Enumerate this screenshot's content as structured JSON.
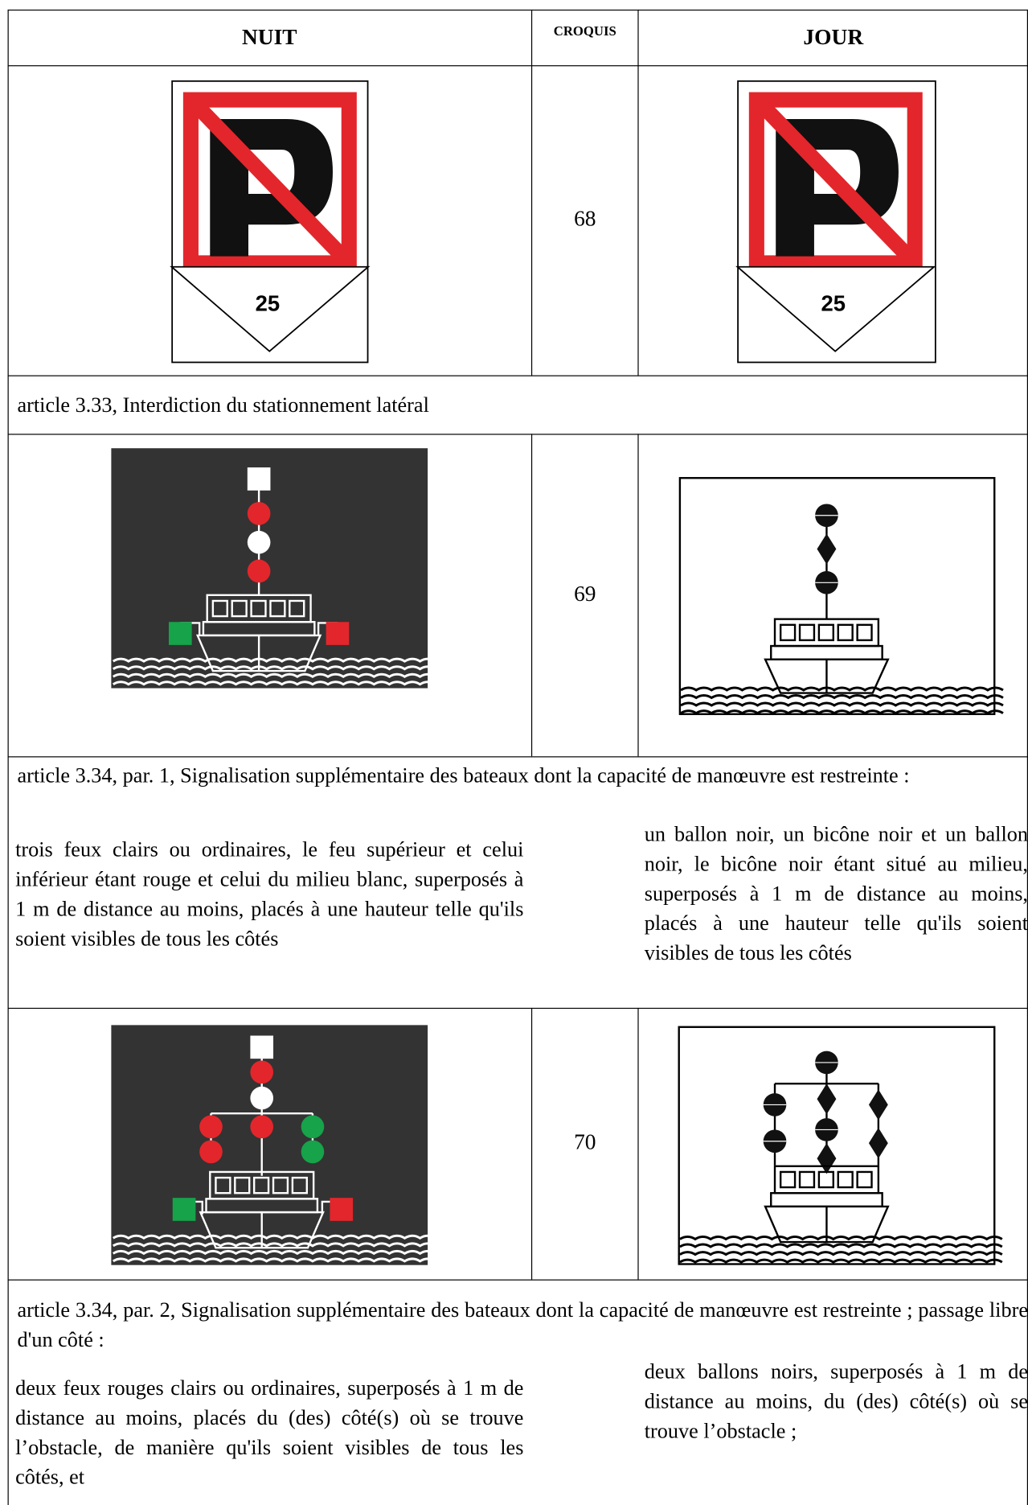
{
  "header": {
    "night": "NUIT",
    "sketch": "CROQUIS",
    "day": "JOUR"
  },
  "sections": [
    {
      "sketch_number": 68,
      "night_sign_label": "25",
      "day_sign_label": "25",
      "article": "article 3.33, Interdiction du stationnement latéral"
    },
    {
      "sketch_number": 69,
      "article": "article 3.34, par. 1, Signalisation supplémentaire des bateaux dont la capacité de manœuvre est restreinte :",
      "night_description": "trois feux clairs ou ordinaires, le feu supérieur et celui inférieur étant rouge et celui du milieu blanc, superposés à 1 m de distance au moins, placés à une hauteur telle qu'ils soient visibles de tous les côtés",
      "day_description": "un ballon noir, un bicône noir et un ballon noir, le bicône noir étant situé au milieu, superposés à 1 m de distance au moins, placés à une hauteur telle qu'ils soient visibles de tous les côtés"
    },
    {
      "sketch_number": 70,
      "article": "article 3.34, par. 2, Signalisation supplémentaire des bateaux dont la capacité de manœuvre est restreinte ; passage libre d'un côté :",
      "night_description": "deux feux rouges clairs ou ordinaires, superposés à 1 m de distance au moins, placés du (des) côté(s) où se trouve l’obstacle, de manière qu'ils soient visibles de tous les côtés, et",
      "day_description": "deux ballons noirs, superposés à 1 m de distance au moins, du (des) côté(s) où se trouve l’obstacle ;"
    }
  ]
}
